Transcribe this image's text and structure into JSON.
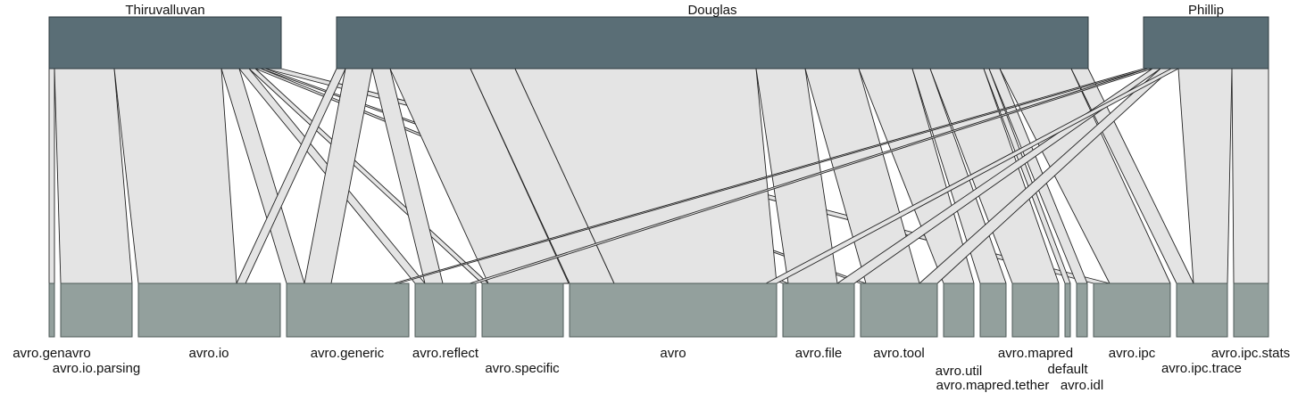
{
  "colors": {
    "top_box": "#5a6e76",
    "bottom_box": "#93a09d",
    "band_fill": "#e4e4e4",
    "band_stroke": "#222222"
  },
  "top_nodes": [
    {
      "id": "t0",
      "label": "Thiruvalluvan"
    },
    {
      "id": "t1",
      "label": "Douglas"
    },
    {
      "id": "t2",
      "label": "Phillip"
    }
  ],
  "bottom_nodes": [
    {
      "id": "b0",
      "label": "avro.genavro"
    },
    {
      "id": "b1",
      "label": "avro.io.parsing"
    },
    {
      "id": "b2",
      "label": "avro.io"
    },
    {
      "id": "b3",
      "label": "avro.generic"
    },
    {
      "id": "b4",
      "label": "avro.reflect"
    },
    {
      "id": "b5",
      "label": "avro.specific"
    },
    {
      "id": "b6",
      "label": "avro"
    },
    {
      "id": "b7",
      "label": "avro.file"
    },
    {
      "id": "b8",
      "label": "avro.tool"
    },
    {
      "id": "b9",
      "label": "avro.util"
    },
    {
      "id": "b10",
      "label": "avro.mapred.tether"
    },
    {
      "id": "b11",
      "label": "avro.mapred"
    },
    {
      "id": "b12",
      "label": "default"
    },
    {
      "id": "b13",
      "label": "avro.idl"
    },
    {
      "id": "b14",
      "label": "avro.ipc"
    },
    {
      "id": "b15",
      "label": "avro.ipc.trace"
    },
    {
      "id": "b16",
      "label": "avro.ipc.stats"
    }
  ]
}
